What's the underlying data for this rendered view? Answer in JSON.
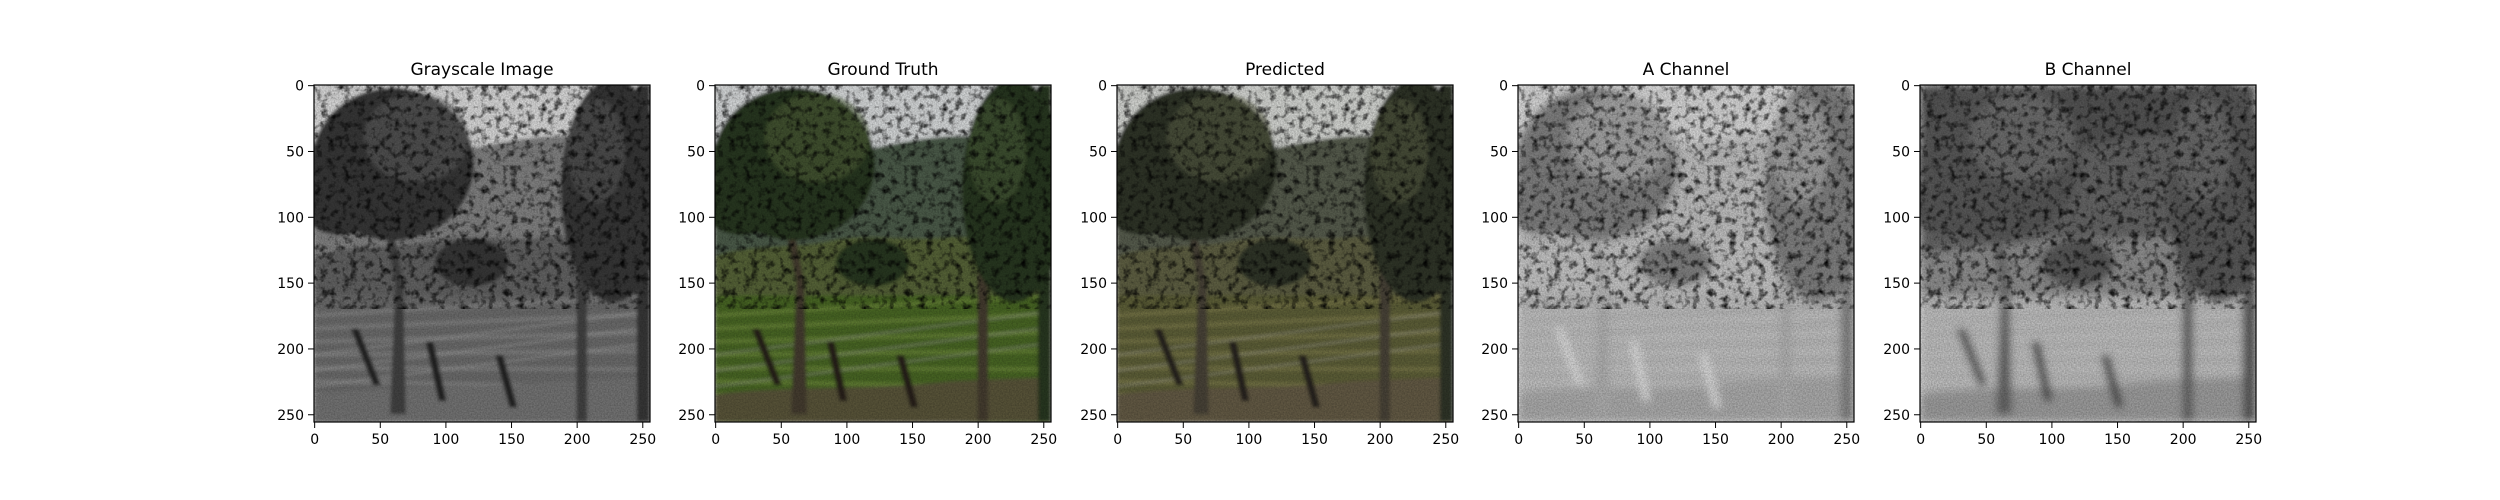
{
  "figure": {
    "panels": [
      {
        "id": "grayscale",
        "title": "Grayscale Image",
        "mode": "gray"
      },
      {
        "id": "ground-truth",
        "title": "Ground Truth",
        "mode": "color"
      },
      {
        "id": "predicted",
        "title": "Predicted",
        "mode": "muted"
      },
      {
        "id": "a-channel",
        "title": "A Channel",
        "mode": "achannel"
      },
      {
        "id": "b-channel",
        "title": "B Channel",
        "mode": "bchannel"
      }
    ],
    "x_ticks": [
      "0",
      "50",
      "100",
      "150",
      "200",
      "250"
    ],
    "y_ticks": [
      "0",
      "50",
      "100",
      "150",
      "200",
      "250"
    ],
    "image_size": 256
  }
}
